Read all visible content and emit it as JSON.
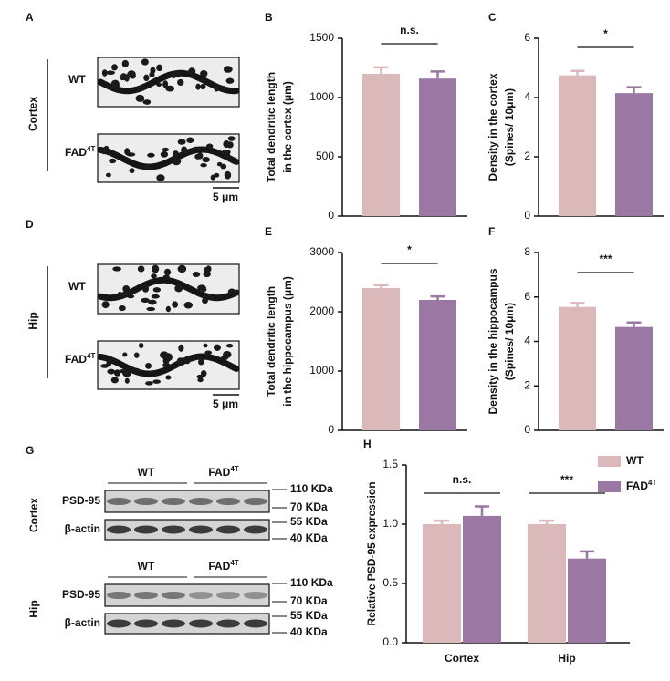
{
  "image_panels": [
    {
      "letter": "A",
      "region": "Cortex",
      "wt": "WT",
      "fad": {
        "text": "FAD",
        "sup": "4T"
      },
      "scale": "5 μm"
    },
    {
      "letter": "D",
      "region": "Hip",
      "wt": "WT",
      "fad": {
        "text": "FAD",
        "sup": "4T"
      },
      "scale": "5 μm"
    }
  ],
  "blot_panel": {
    "letter": "G",
    "groups": [
      {
        "region": "Cortex",
        "wt": "WT",
        "fad": {
          "text": "FAD",
          "sup": "4T"
        },
        "rows": [
          "PSD-95",
          "β-actin"
        ],
        "markers": [
          "110 KDa",
          "70 KDa",
          "55 KDa",
          "40 KDa"
        ]
      },
      {
        "region": "Hip",
        "wt": "WT",
        "fad": {
          "text": "FAD",
          "sup": "4T"
        },
        "rows": [
          "PSD-95",
          "β-actin"
        ],
        "markers": [
          "110 KDa",
          "70 KDa",
          "55 KDa",
          "40 KDa"
        ]
      }
    ]
  },
  "chart_data": [
    {
      "type": "bar",
      "panel": "B",
      "y_label": [
        "Total dendritic length",
        "in the cortex (μm)"
      ],
      "annotation": "n.s.",
      "categories": [
        null,
        null
      ],
      "values": [
        1200,
        1160
      ],
      "errors": [
        55,
        60
      ],
      "colors": [
        "#dbb8ba",
        "#9b77a3"
      ],
      "ylim": [
        0,
        1500
      ],
      "yticks": [
        0,
        500,
        1000,
        1500
      ]
    },
    {
      "type": "bar",
      "panel": "C",
      "y_label": [
        "Density in the cortex",
        "(Spines/ 10μm)"
      ],
      "annotation": "*",
      "categories": [
        null,
        null
      ],
      "values": [
        4.75,
        4.15
      ],
      "errors": [
        0.15,
        0.2
      ],
      "colors": [
        "#dbb8ba",
        "#9b77a3"
      ],
      "ylim": [
        0,
        6
      ],
      "yticks": [
        0,
        2,
        4,
        6
      ]
    },
    {
      "type": "bar",
      "panel": "E",
      "y_label": [
        "Total dendritic length",
        "in the hippocampus (μm)"
      ],
      "annotation": "*",
      "categories": [
        null,
        null
      ],
      "values": [
        2400,
        2200
      ],
      "errors": [
        50,
        60
      ],
      "colors": [
        "#dbb8ba",
        "#9b77a3"
      ],
      "ylim": [
        0,
        3000
      ],
      "yticks": [
        0,
        1000,
        2000,
        3000
      ]
    },
    {
      "type": "bar",
      "panel": "F",
      "y_label": [
        "Density in the hippocampus",
        "(Spines/ 10μm)"
      ],
      "annotation": "***",
      "categories": [
        null,
        null
      ],
      "values": [
        5.55,
        4.65
      ],
      "errors": [
        0.18,
        0.2
      ],
      "colors": [
        "#dbb8ba",
        "#9b77a3"
      ],
      "ylim": [
        0,
        8
      ],
      "yticks": [
        0,
        2,
        4,
        6,
        8
      ]
    },
    {
      "type": "grouped-bar",
      "panel": "H",
      "y_label": [
        "Relative PSD-95 expression"
      ],
      "annotations": [
        "n.s.",
        "***"
      ],
      "categories": [
        "Cortex",
        "Hip"
      ],
      "series": [
        {
          "name": "WT",
          "color": "#dbb8ba",
          "values": [
            1.0,
            1.0
          ],
          "errors": [
            0.03,
            0.03
          ]
        },
        {
          "name": {
            "text": "FAD",
            "sup": "4T"
          },
          "color": "#9b77a3",
          "values": [
            1.07,
            0.71
          ],
          "errors": [
            0.08,
            0.06
          ]
        }
      ],
      "ylim": [
        0,
        1.5
      ],
      "yticks": [
        {
          "value": 0,
          "label": "0.0"
        },
        0.5,
        {
          "value": 1,
          "label": "1.0"
        },
        1.5
      ],
      "legend": "upper-right"
    }
  ]
}
